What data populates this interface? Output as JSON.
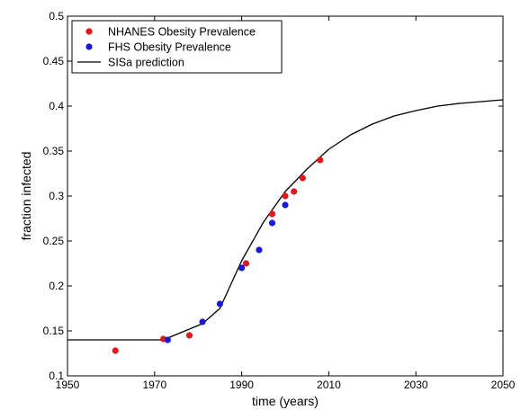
{
  "chart_data": {
    "type": "scatter",
    "xlabel": "time (years)",
    "ylabel": "fraction infected",
    "xlim": [
      1950,
      2050
    ],
    "ylim": [
      0.1,
      0.5
    ],
    "xticks": [
      1950,
      1970,
      1990,
      2010,
      2030,
      2050
    ],
    "xtick_labels": [
      "1950",
      "1970",
      "1990",
      "2010",
      "2030",
      "2050"
    ],
    "yticks": [
      0.1,
      0.15,
      0.2,
      0.25,
      0.3,
      0.35,
      0.4,
      0.45,
      0.5
    ],
    "ytick_labels": [
      "0.1",
      "0.15",
      "0.2",
      "0.25",
      "0.3",
      "0.35",
      "0.4",
      "0.45",
      "0.5"
    ],
    "grid": false,
    "legend_position": "top-left",
    "series": [
      {
        "name": "NHANES Obesity Prevalence",
        "type": "scatter",
        "color": "#e0191e",
        "x": [
          1961,
          1972,
          1978,
          1991,
          1997,
          2000,
          2002,
          2004,
          2008
        ],
        "y": [
          0.128,
          0.141,
          0.145,
          0.225,
          0.28,
          0.3,
          0.305,
          0.32,
          0.34
        ]
      },
      {
        "name": "FHS Obesity Prevalence",
        "type": "scatter",
        "color": "#1a1ad6",
        "x": [
          1973,
          1981,
          1985,
          1990,
          1994,
          1997,
          2000
        ],
        "y": [
          0.14,
          0.16,
          0.18,
          0.22,
          0.24,
          0.27,
          0.29
        ]
      },
      {
        "name": "SISa prediction",
        "type": "line",
        "color": "#000000",
        "x": [
          1950,
          1972,
          1981,
          1985,
          1990,
          1995,
          2000,
          2005,
          2010,
          2015,
          2020,
          2025,
          2030,
          2035,
          2040,
          2045,
          2050
        ],
        "y": [
          0.14,
          0.14,
          0.158,
          0.175,
          0.228,
          0.271,
          0.305,
          0.33,
          0.352,
          0.368,
          0.38,
          0.389,
          0.395,
          0.4,
          0.403,
          0.405,
          0.407
        ]
      }
    ]
  }
}
